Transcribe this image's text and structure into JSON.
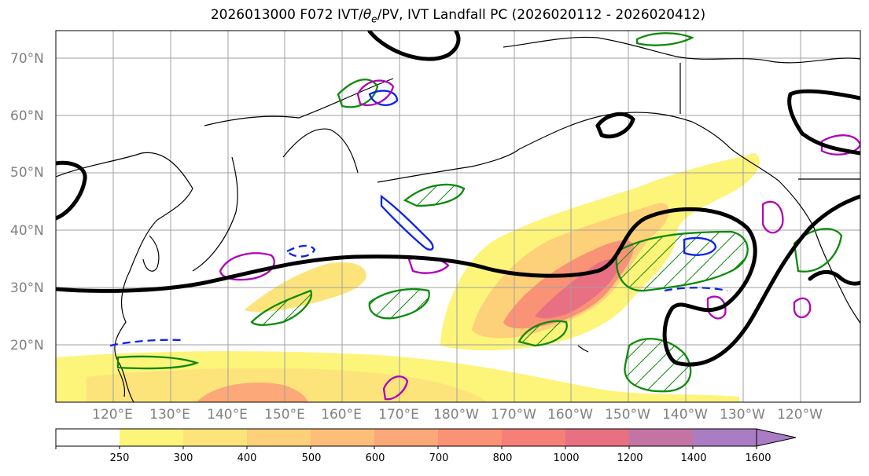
{
  "title": "2026013000 F072 IVT/θe/PV, IVT Landfall PC (2026020112 - 2026020412)",
  "title_parts": {
    "before": "2026013000 F072 IVT/",
    "theta": "θ",
    "subscript": "e",
    "after": "/PV, IVT Landfall PC (2026020112 - 2026020412)"
  },
  "lat_labels": [
    "70°N",
    "60°N",
    "50°N",
    "40°N",
    "30°N",
    "20°N"
  ],
  "lon_labels": [
    "120°E",
    "130°E",
    "140°E",
    "150°E",
    "160°E",
    "170°E",
    "180°W",
    "170°W",
    "160°W",
    "150°W",
    "140°W",
    "130°W",
    "120°W"
  ],
  "colorbar": {
    "levels": [
      250,
      300,
      400,
      500,
      600,
      700,
      800,
      1000,
      1200,
      1400,
      1600
    ],
    "tick_labels": [
      "250",
      "300",
      "400",
      "500",
      "600",
      "700",
      "800",
      "1000",
      "1200",
      "1400",
      "1600"
    ],
    "colors": [
      "#ffffff",
      "#fdf47a",
      "#fde47a",
      "#fdd07a",
      "#fdbe78",
      "#fca878",
      "#fa9276",
      "#f67f78",
      "#e87082",
      "#c474a4",
      "#a97cc4"
    ]
  },
  "map_colors": {
    "ocean": "#ffffff",
    "coastline": "#000000",
    "grid": "#a0a0a0",
    "pv_contour": "#000000",
    "theta_e_warm": "#0b8a0b",
    "theta_e_cold": "#0a24e6",
    "landfall_pc": "#b000b8"
  }
}
